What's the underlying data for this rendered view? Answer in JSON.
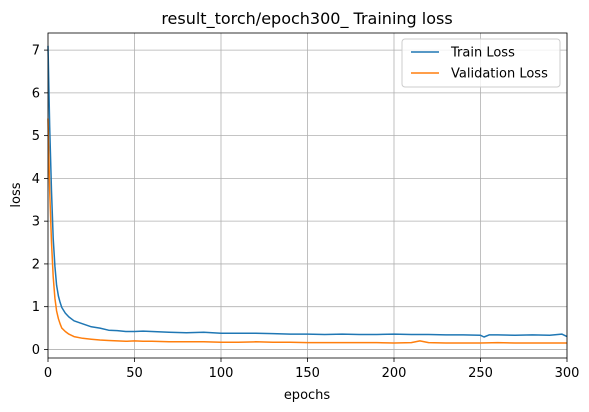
{
  "chart_data": {
    "type": "line",
    "title": "result_torch/epoch300_ Training loss",
    "xlabel": "epochs",
    "ylabel": "loss",
    "xlim": [
      0,
      300
    ],
    "ylim": [
      -0.2,
      7.4
    ],
    "xticks": [
      0,
      50,
      100,
      150,
      200,
      250,
      300
    ],
    "xtick_labels": [
      "0",
      "50",
      "100",
      "150",
      "200",
      "250",
      "300"
    ],
    "yticks": [
      0,
      1,
      2,
      3,
      4,
      5,
      6,
      7
    ],
    "ytick_labels": [
      "0",
      "1",
      "2",
      "3",
      "4",
      "5",
      "6",
      "7"
    ],
    "grid": true,
    "legend_position": "top-right",
    "series": [
      {
        "name": "Train Loss",
        "color": "#1f77b4",
        "x": [
          0,
          1,
          2,
          3,
          4,
          5,
          6,
          7,
          8,
          10,
          12,
          15,
          20,
          25,
          30,
          35,
          40,
          45,
          50,
          55,
          60,
          70,
          80,
          90,
          100,
          110,
          120,
          130,
          140,
          150,
          160,
          170,
          180,
          190,
          200,
          210,
          220,
          230,
          240,
          250,
          252,
          255,
          260,
          270,
          280,
          290,
          297,
          300
        ],
        "y": [
          7.1,
          5.2,
          3.7,
          2.6,
          1.95,
          1.5,
          1.25,
          1.1,
          0.98,
          0.85,
          0.76,
          0.67,
          0.6,
          0.53,
          0.5,
          0.45,
          0.44,
          0.42,
          0.42,
          0.43,
          0.42,
          0.4,
          0.39,
          0.4,
          0.38,
          0.38,
          0.38,
          0.37,
          0.36,
          0.36,
          0.35,
          0.36,
          0.35,
          0.35,
          0.36,
          0.35,
          0.35,
          0.34,
          0.34,
          0.33,
          0.29,
          0.34,
          0.34,
          0.33,
          0.34,
          0.33,
          0.36,
          0.3
        ]
      },
      {
        "name": "Validation Loss",
        "color": "#ff7f0e",
        "x": [
          0,
          1,
          2,
          3,
          4,
          5,
          6,
          7,
          8,
          10,
          12,
          15,
          20,
          25,
          30,
          35,
          40,
          45,
          50,
          55,
          60,
          70,
          80,
          90,
          100,
          110,
          120,
          130,
          140,
          150,
          160,
          170,
          180,
          190,
          200,
          210,
          215,
          220,
          230,
          240,
          250,
          260,
          270,
          280,
          290,
          300
        ],
        "y": [
          5.4,
          3.7,
          2.5,
          1.7,
          1.2,
          0.9,
          0.72,
          0.6,
          0.5,
          0.42,
          0.36,
          0.3,
          0.26,
          0.24,
          0.22,
          0.21,
          0.2,
          0.19,
          0.2,
          0.19,
          0.19,
          0.18,
          0.18,
          0.18,
          0.17,
          0.17,
          0.18,
          0.17,
          0.17,
          0.16,
          0.16,
          0.16,
          0.16,
          0.16,
          0.15,
          0.16,
          0.2,
          0.16,
          0.15,
          0.15,
          0.15,
          0.16,
          0.15,
          0.15,
          0.15,
          0.15
        ]
      }
    ]
  }
}
